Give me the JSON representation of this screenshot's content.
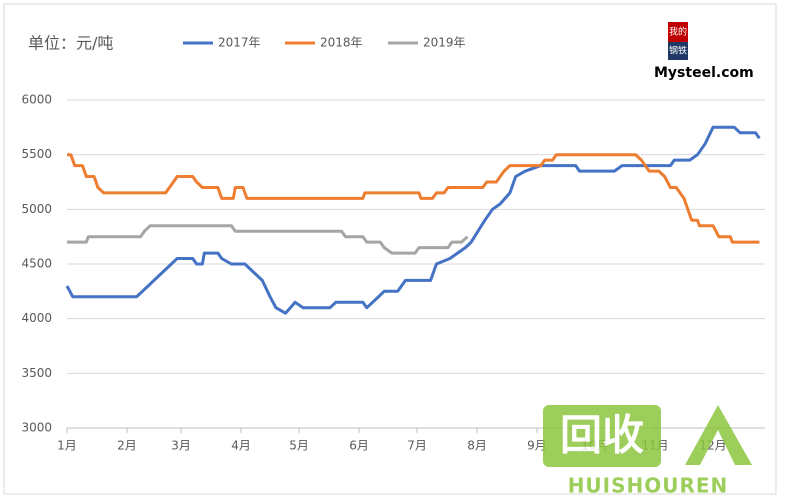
{
  "chart_data": {
    "type": "line",
    "title": "单位：元/吨",
    "xlim": [
      1,
      365
    ],
    "ylim": [
      3000,
      6000
    ],
    "yticks": [
      3000,
      3500,
      4000,
      4500,
      5000,
      5500,
      6000
    ],
    "xticks": [
      {
        "value": 1,
        "label": "1月"
      },
      {
        "value": 32,
        "label": "2月"
      },
      {
        "value": 60,
        "label": "3月"
      },
      {
        "value": 91,
        "label": "4月"
      },
      {
        "value": 121,
        "label": "5月"
      },
      {
        "value": 152,
        "label": "6月"
      },
      {
        "value": 182,
        "label": "7月"
      },
      {
        "value": 213,
        "label": "8月"
      },
      {
        "value": 244,
        "label": "9月"
      },
      {
        "value": 274,
        "label": "10月"
      },
      {
        "value": 305,
        "label": "11月"
      },
      {
        "value": 335,
        "label": "12月"
      }
    ],
    "grid": true,
    "series": [
      {
        "name": "2017年",
        "color": "#4472c4",
        "x": [
          1,
          4,
          37,
          43,
          49,
          58,
          66,
          68,
          71,
          72,
          79,
          81,
          86,
          93,
          96,
          102,
          106,
          109,
          114,
          119,
          123,
          137,
          140,
          154,
          156,
          159,
          165,
          172,
          176,
          189,
          192,
          199,
          207,
          210,
          217,
          221,
          225,
          230,
          233,
          238,
          246,
          264,
          266,
          284,
          288,
          313,
          315,
          323,
          327,
          331,
          335,
          346,
          349,
          357,
          359
        ],
        "values": [
          4300,
          4200,
          4200,
          4300,
          4400,
          4550,
          4550,
          4500,
          4500,
          4600,
          4600,
          4550,
          4500,
          4500,
          4450,
          4350,
          4200,
          4100,
          4050,
          4150,
          4100,
          4100,
          4150,
          4150,
          4100,
          4150,
          4250,
          4250,
          4350,
          4350,
          4500,
          4550,
          4650,
          4700,
          4900,
          5000,
          5050,
          5150,
          5300,
          5350,
          5400,
          5400,
          5350,
          5350,
          5400,
          5400,
          5450,
          5450,
          5500,
          5600,
          5750,
          5750,
          5700,
          5700,
          5650
        ]
      },
      {
        "name": "2018年",
        "color": "#ed7d31",
        "x": [
          1,
          3,
          5,
          9,
          11,
          15,
          17,
          20,
          52,
          54,
          58,
          66,
          68,
          71,
          79,
          81,
          87,
          88,
          92,
          94,
          154,
          155,
          183,
          184,
          190,
          192,
          196,
          198,
          216,
          218,
          223,
          225,
          227,
          230,
          246,
          248,
          252,
          254,
          295,
          298,
          302,
          307,
          310,
          313,
          316,
          320,
          322,
          324,
          327,
          328,
          335,
          338,
          344,
          345,
          359
        ],
        "values": [
          5500,
          5500,
          5400,
          5400,
          5300,
          5300,
          5200,
          5150,
          5150,
          5200,
          5300,
          5300,
          5250,
          5200,
          5200,
          5100,
          5100,
          5200,
          5200,
          5100,
          5100,
          5150,
          5150,
          5100,
          5100,
          5150,
          5150,
          5200,
          5200,
          5250,
          5250,
          5300,
          5350,
          5400,
          5400,
          5450,
          5450,
          5500,
          5500,
          5450,
          5350,
          5350,
          5300,
          5200,
          5200,
          5100,
          5000,
          4900,
          4900,
          4850,
          4850,
          4750,
          4750,
          4700,
          4700
        ]
      },
      {
        "name": "2019年",
        "color": "#a5a5a5",
        "x": [
          1,
          11,
          12,
          39,
          41,
          44,
          86,
          88,
          143,
          145,
          154,
          156,
          163,
          165,
          169,
          181,
          183,
          198,
          200,
          205,
          208
        ],
        "values": [
          4700,
          4700,
          4750,
          4750,
          4800,
          4850,
          4850,
          4800,
          4800,
          4750,
          4750,
          4700,
          4700,
          4650,
          4600,
          4600,
          4650,
          4650,
          4700,
          4700,
          4750
        ]
      }
    ]
  },
  "logo": {
    "line1": "我的",
    "line2": "钢铁",
    "text": "Mysteel.com"
  },
  "watermark": {
    "mark": "回收",
    "text": "HUISHOUREN"
  }
}
